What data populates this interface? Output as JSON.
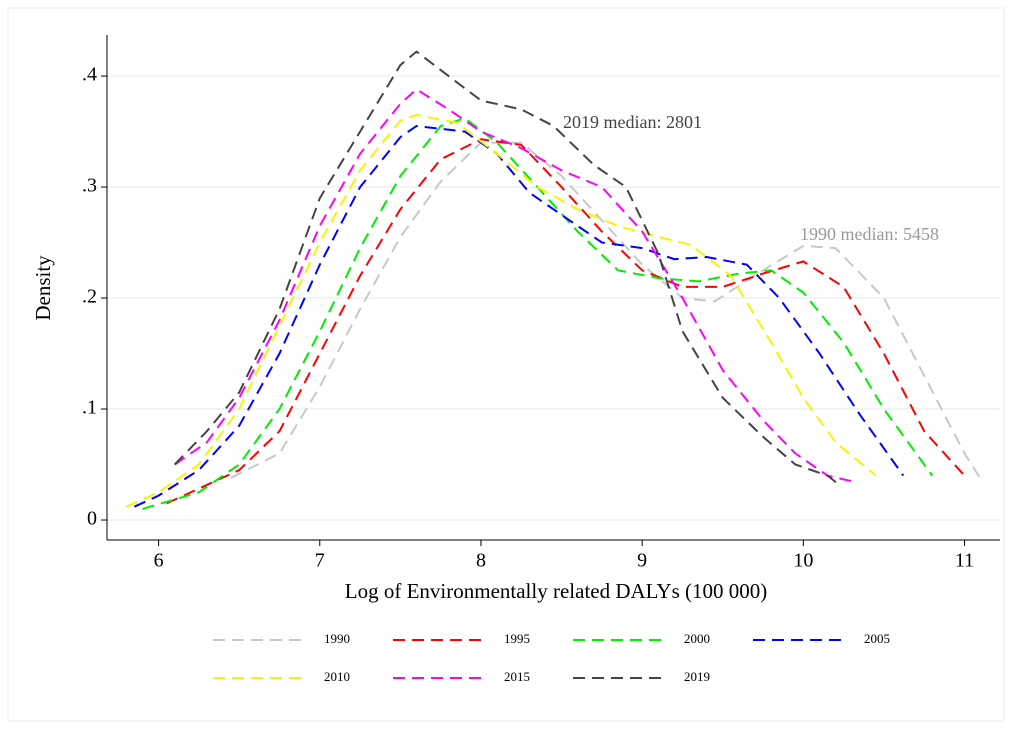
{
  "chart_data": {
    "type": "line",
    "xlabel": "Log of Environmentally related DALYs (100 000)",
    "ylabel": "Density",
    "annotations": [
      "2019 median: 2801",
      "1990 median: 5458"
    ],
    "xlim": [
      5.68,
      11.22
    ],
    "xticks": [
      6,
      7,
      8,
      9,
      10,
      11
    ],
    "ylim": [
      -0.018,
      0.437
    ],
    "yticks": [
      0,
      {
        "value": 0.1,
        "label": ".1"
      },
      {
        "value": 0.2,
        "label": ".2"
      },
      {
        "value": 0.3,
        "label": ".3"
      },
      {
        "value": 0.4,
        "label": ".4"
      }
    ],
    "grid": true,
    "legend": "bottom",
    "dashed": true,
    "series": [
      {
        "name": "1990",
        "color": "#c8c8c8",
        "x": [
          6.45,
          6.75,
          7,
          7.25,
          7.5,
          7.75,
          8,
          8.25,
          8.5,
          8.75,
          9,
          9.25,
          9.45,
          9.75,
          10,
          10.2,
          10.5,
          10.75,
          11,
          11.1
        ],
        "values": [
          0.038,
          0.06,
          0.12,
          0.19,
          0.255,
          0.305,
          0.34,
          0.34,
          0.31,
          0.27,
          0.23,
          0.2,
          0.197,
          0.225,
          0.247,
          0.245,
          0.2,
          0.13,
          0.06,
          0.037
        ]
      },
      {
        "name": "1995",
        "color": "#ff0000",
        "x": [
          6.05,
          6.5,
          6.75,
          7,
          7.25,
          7.5,
          7.75,
          8,
          8.25,
          8.5,
          8.75,
          9,
          9.25,
          9.5,
          9.75,
          10,
          10.25,
          10.5,
          10.75,
          11
        ],
        "values": [
          0.015,
          0.045,
          0.08,
          0.15,
          0.22,
          0.28,
          0.325,
          0.343,
          0.338,
          0.3,
          0.26,
          0.225,
          0.21,
          0.21,
          0.222,
          0.233,
          0.21,
          0.15,
          0.08,
          0.04
        ]
      },
      {
        "name": "2000",
        "color": "#00ee00",
        "x": [
          5.9,
          6.25,
          6.5,
          6.75,
          7,
          7.25,
          7.5,
          7.75,
          7.9,
          8.1,
          8.35,
          8.6,
          8.85,
          9.1,
          9.35,
          9.6,
          9.8,
          10,
          10.25,
          10.5,
          10.8
        ],
        "values": [
          0.01,
          0.025,
          0.05,
          0.1,
          0.17,
          0.245,
          0.31,
          0.355,
          0.362,
          0.34,
          0.3,
          0.26,
          0.225,
          0.218,
          0.215,
          0.222,
          0.225,
          0.205,
          0.16,
          0.1,
          0.04
        ]
      },
      {
        "name": "2005",
        "color": "#0000ff",
        "x": [
          5.85,
          6,
          6.25,
          6.5,
          6.75,
          7,
          7.25,
          7.5,
          7.6,
          7.9,
          8.1,
          8.3,
          8.55,
          8.75,
          9,
          9.2,
          9.4,
          9.65,
          9.85,
          10.1,
          10.35,
          10.62
        ],
        "values": [
          0.012,
          0.022,
          0.045,
          0.085,
          0.15,
          0.23,
          0.3,
          0.345,
          0.355,
          0.35,
          0.33,
          0.295,
          0.27,
          0.25,
          0.245,
          0.235,
          0.237,
          0.23,
          0.2,
          0.15,
          0.095,
          0.04
        ]
      },
      {
        "name": "2010",
        "color": "#f5f500",
        "x": [
          5.8,
          6,
          6.25,
          6.5,
          6.75,
          7,
          7.25,
          7.5,
          7.6,
          7.85,
          8.1,
          8.35,
          8.6,
          8.85,
          9.1,
          9.3,
          9.55,
          9.8,
          10,
          10.2,
          10.45
        ],
        "values": [
          0.012,
          0.025,
          0.05,
          0.1,
          0.175,
          0.25,
          0.315,
          0.36,
          0.365,
          0.358,
          0.33,
          0.3,
          0.28,
          0.265,
          0.255,
          0.248,
          0.22,
          0.16,
          0.11,
          0.07,
          0.04
        ]
      },
      {
        "name": "2015",
        "color": "#ff00ff",
        "x": [
          6.1,
          6.3,
          6.5,
          6.75,
          7,
          7.25,
          7.5,
          7.6,
          7.8,
          8,
          8.25,
          8.5,
          8.75,
          9,
          9.25,
          9.5,
          9.75,
          9.95,
          10.15,
          10.3
        ],
        "values": [
          0.05,
          0.07,
          0.11,
          0.18,
          0.265,
          0.33,
          0.375,
          0.388,
          0.37,
          0.35,
          0.335,
          0.315,
          0.3,
          0.26,
          0.2,
          0.135,
          0.09,
          0.06,
          0.04,
          0.035
        ]
      },
      {
        "name": "2019",
        "color": "#444444",
        "x": [
          6.1,
          6.3,
          6.5,
          6.75,
          7,
          7.25,
          7.5,
          7.6,
          7.8,
          8,
          8.25,
          8.45,
          8.7,
          8.9,
          9.1,
          9.25,
          9.5,
          9.75,
          9.95,
          10.15,
          10.22
        ],
        "values": [
          0.05,
          0.08,
          0.115,
          0.19,
          0.29,
          0.35,
          0.41,
          0.422,
          0.4,
          0.378,
          0.37,
          0.355,
          0.32,
          0.3,
          0.24,
          0.17,
          0.11,
          0.075,
          0.05,
          0.04,
          0.032
        ]
      }
    ]
  }
}
